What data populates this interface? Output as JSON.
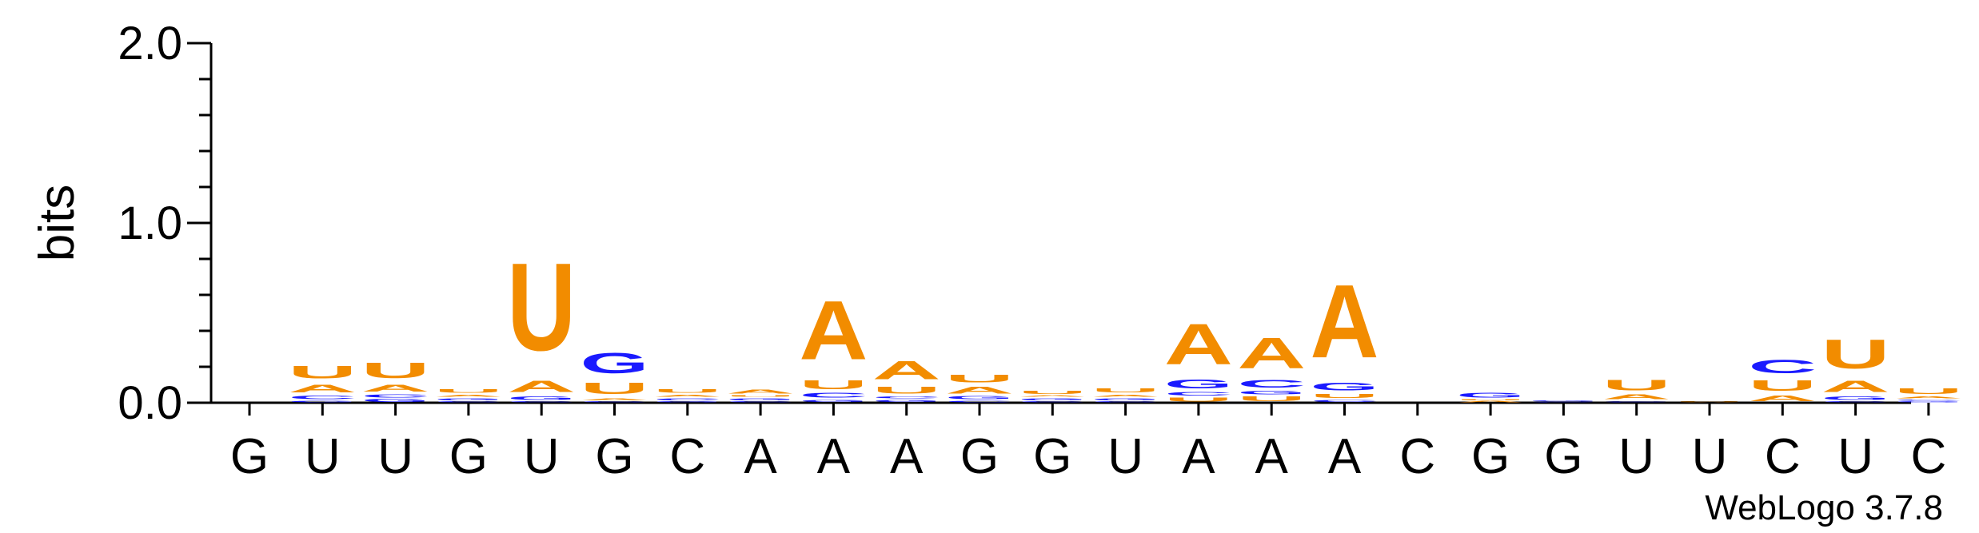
{
  "chart_data": {
    "type": "sequence-logo",
    "ylabel": "bits",
    "ylim": [
      0,
      2.0
    ],
    "yticks": [
      {
        "value": 0.0,
        "label": "0.0"
      },
      {
        "value": 1.0,
        "label": "1.0"
      },
      {
        "value": 2.0,
        "label": "2.0"
      }
    ],
    "credit": "WebLogo 3.7.8",
    "colors": {
      "U": "#f28c00",
      "A": "#f28c00",
      "G": "#1a1aff",
      "C": "#1a1aff"
    },
    "positions": [
      {
        "consensus": "G",
        "stack": []
      },
      {
        "consensus": "U",
        "stack": [
          {
            "base": "G",
            "bits": 0.015
          },
          {
            "base": "C",
            "bits": 0.03
          },
          {
            "base": "A",
            "bits": 0.07
          },
          {
            "base": "U",
            "bits": 0.11
          }
        ]
      },
      {
        "consensus": "U",
        "stack": [
          {
            "base": "G",
            "bits": 0.025
          },
          {
            "base": "C",
            "bits": 0.025
          },
          {
            "base": "A",
            "bits": 0.06
          },
          {
            "base": "U",
            "bits": 0.14
          }
        ]
      },
      {
        "consensus": "G",
        "stack": [
          {
            "base": "C",
            "bits": 0.01
          },
          {
            "base": "G",
            "bits": 0.02
          },
          {
            "base": "A",
            "bits": 0.02
          },
          {
            "base": "U",
            "bits": 0.03
          }
        ]
      },
      {
        "consensus": "U",
        "stack": [
          {
            "base": "C",
            "bits": 0.01
          },
          {
            "base": "G",
            "bits": 0.03
          },
          {
            "base": "A",
            "bits": 0.1
          },
          {
            "base": "U",
            "bits": 0.78
          }
        ]
      },
      {
        "consensus": "G",
        "stack": [
          {
            "base": "C",
            "bits": 0.01
          },
          {
            "base": "A",
            "bits": 0.02
          },
          {
            "base": "U",
            "bits": 0.1
          },
          {
            "base": "G",
            "bits": 0.18
          }
        ]
      },
      {
        "consensus": "C",
        "stack": [
          {
            "base": "G",
            "bits": 0.01
          },
          {
            "base": "C",
            "bits": 0.02
          },
          {
            "base": "A",
            "bits": 0.02
          },
          {
            "base": "U",
            "bits": 0.03
          }
        ]
      },
      {
        "consensus": "A",
        "stack": [
          {
            "base": "C",
            "bits": 0.01
          },
          {
            "base": "G",
            "bits": 0.02
          },
          {
            "base": "U",
            "bits": 0.015
          },
          {
            "base": "A",
            "bits": 0.035
          }
        ]
      },
      {
        "consensus": "A",
        "stack": [
          {
            "base": "G",
            "bits": 0.02
          },
          {
            "base": "C",
            "bits": 0.04
          },
          {
            "base": "U",
            "bits": 0.08
          },
          {
            "base": "A",
            "bits": 0.52
          }
        ]
      },
      {
        "consensus": "A",
        "stack": [
          {
            "base": "G",
            "bits": 0.02
          },
          {
            "base": "C",
            "bits": 0.02
          },
          {
            "base": "U",
            "bits": 0.06
          },
          {
            "base": "A",
            "bits": 0.16
          }
        ]
      },
      {
        "consensus": "G",
        "stack": [
          {
            "base": "C",
            "bits": 0.015
          },
          {
            "base": "G",
            "bits": 0.025
          },
          {
            "base": "A",
            "bits": 0.06
          },
          {
            "base": "U",
            "bits": 0.07
          }
        ]
      },
      {
        "consensus": "G",
        "stack": [
          {
            "base": "C",
            "bits": 0.01
          },
          {
            "base": "G",
            "bits": 0.02
          },
          {
            "base": "A",
            "bits": 0.015
          },
          {
            "base": "U",
            "bits": 0.025
          }
        ]
      },
      {
        "consensus": "U",
        "stack": [
          {
            "base": "C",
            "bits": 0.01
          },
          {
            "base": "G",
            "bits": 0.02
          },
          {
            "base": "A",
            "bits": 0.02
          },
          {
            "base": "U",
            "bits": 0.035
          }
        ]
      },
      {
        "consensus": "A",
        "stack": [
          {
            "base": "U",
            "bits": 0.035
          },
          {
            "base": "C",
            "bits": 0.03
          },
          {
            "base": "G",
            "bits": 0.08
          },
          {
            "base": "A",
            "bits": 0.36
          }
        ]
      },
      {
        "consensus": "A",
        "stack": [
          {
            "base": "U",
            "bits": 0.04
          },
          {
            "base": "G",
            "bits": 0.03
          },
          {
            "base": "C",
            "bits": 0.07
          },
          {
            "base": "A",
            "bits": 0.27
          }
        ]
      },
      {
        "consensus": "A",
        "stack": [
          {
            "base": "C",
            "bits": 0.02
          },
          {
            "base": "U",
            "bits": 0.035
          },
          {
            "base": "G",
            "bits": 0.07
          },
          {
            "base": "A",
            "bits": 0.65
          }
        ]
      },
      {
        "consensus": "C",
        "stack": []
      },
      {
        "consensus": "G",
        "stack": [
          {
            "base": "A",
            "bits": 0.012
          },
          {
            "base": "U",
            "bits": 0.008
          },
          {
            "base": "G",
            "bits": 0.04
          }
        ]
      },
      {
        "consensus": "G",
        "stack": [
          {
            "base": "C",
            "bits": 0.005
          },
          {
            "base": "G",
            "bits": 0.008
          }
        ]
      },
      {
        "consensus": "U",
        "stack": [
          {
            "base": "C",
            "bits": 0.006
          },
          {
            "base": "G",
            "bits": 0.006
          },
          {
            "base": "A",
            "bits": 0.04
          },
          {
            "base": "U",
            "bits": 0.09
          }
        ]
      },
      {
        "consensus": "U",
        "stack": [
          {
            "base": "A",
            "bits": 0.006
          },
          {
            "base": "U",
            "bits": 0.006
          }
        ]
      },
      {
        "consensus": "C",
        "stack": [
          {
            "base": "A",
            "bits": 0.05
          },
          {
            "base": "U",
            "bits": 0.09
          },
          {
            "base": "C",
            "bits": 0.12
          }
        ]
      },
      {
        "consensus": "U",
        "stack": [
          {
            "base": "C",
            "bits": 0.01
          },
          {
            "base": "G",
            "bits": 0.03
          },
          {
            "base": "A",
            "bits": 0.1
          },
          {
            "base": "U",
            "bits": 0.26
          }
        ]
      },
      {
        "consensus": "C",
        "stack": [
          {
            "base": "G",
            "bits": 0.01
          },
          {
            "base": "C",
            "bits": 0.01
          },
          {
            "base": "A",
            "bits": 0.02
          },
          {
            "base": "U",
            "bits": 0.05
          }
        ]
      }
    ]
  }
}
